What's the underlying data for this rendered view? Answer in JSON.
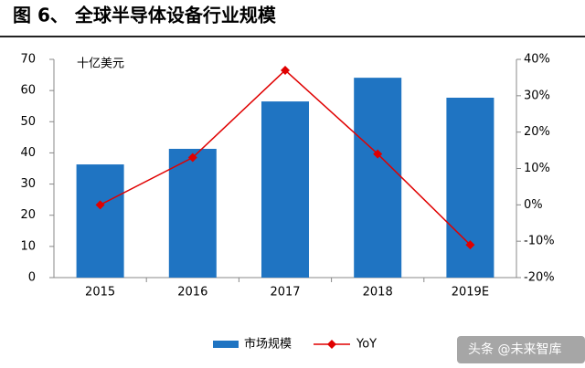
{
  "chart_data": {
    "type": "bar",
    "title": "图 6、 全球半导体设备行业规模",
    "y_unit": "十亿美元",
    "categories": [
      "2015",
      "2016",
      "2017",
      "2018",
      "2019E"
    ],
    "series": [
      {
        "name": "市场规模",
        "color": "#1f74c2",
        "values": [
          36.3,
          41.3,
          56.5,
          64.1,
          57.7
        ]
      },
      {
        "name": "YoY",
        "color": "#e00000",
        "type": "line",
        "axis": "y2",
        "values": [
          0,
          13,
          37,
          14,
          -11
        ]
      }
    ],
    "ylim": [
      0,
      70
    ],
    "yticks": [
      0,
      10,
      20,
      30,
      40,
      50,
      60,
      70
    ],
    "y2lim": [
      -20,
      40
    ],
    "y2ticks": [
      {
        "value": -20,
        "label": "-20%"
      },
      {
        "value": -10,
        "label": "-10%"
      },
      {
        "value": 0,
        "label": "0%"
      },
      {
        "value": 10,
        "label": "10%"
      },
      {
        "value": 20,
        "label": "20%"
      },
      {
        "value": 30,
        "label": "30%"
      },
      {
        "value": 40,
        "label": "40%"
      }
    ],
    "grid": false,
    "watermark": "头条 @未来智库"
  }
}
